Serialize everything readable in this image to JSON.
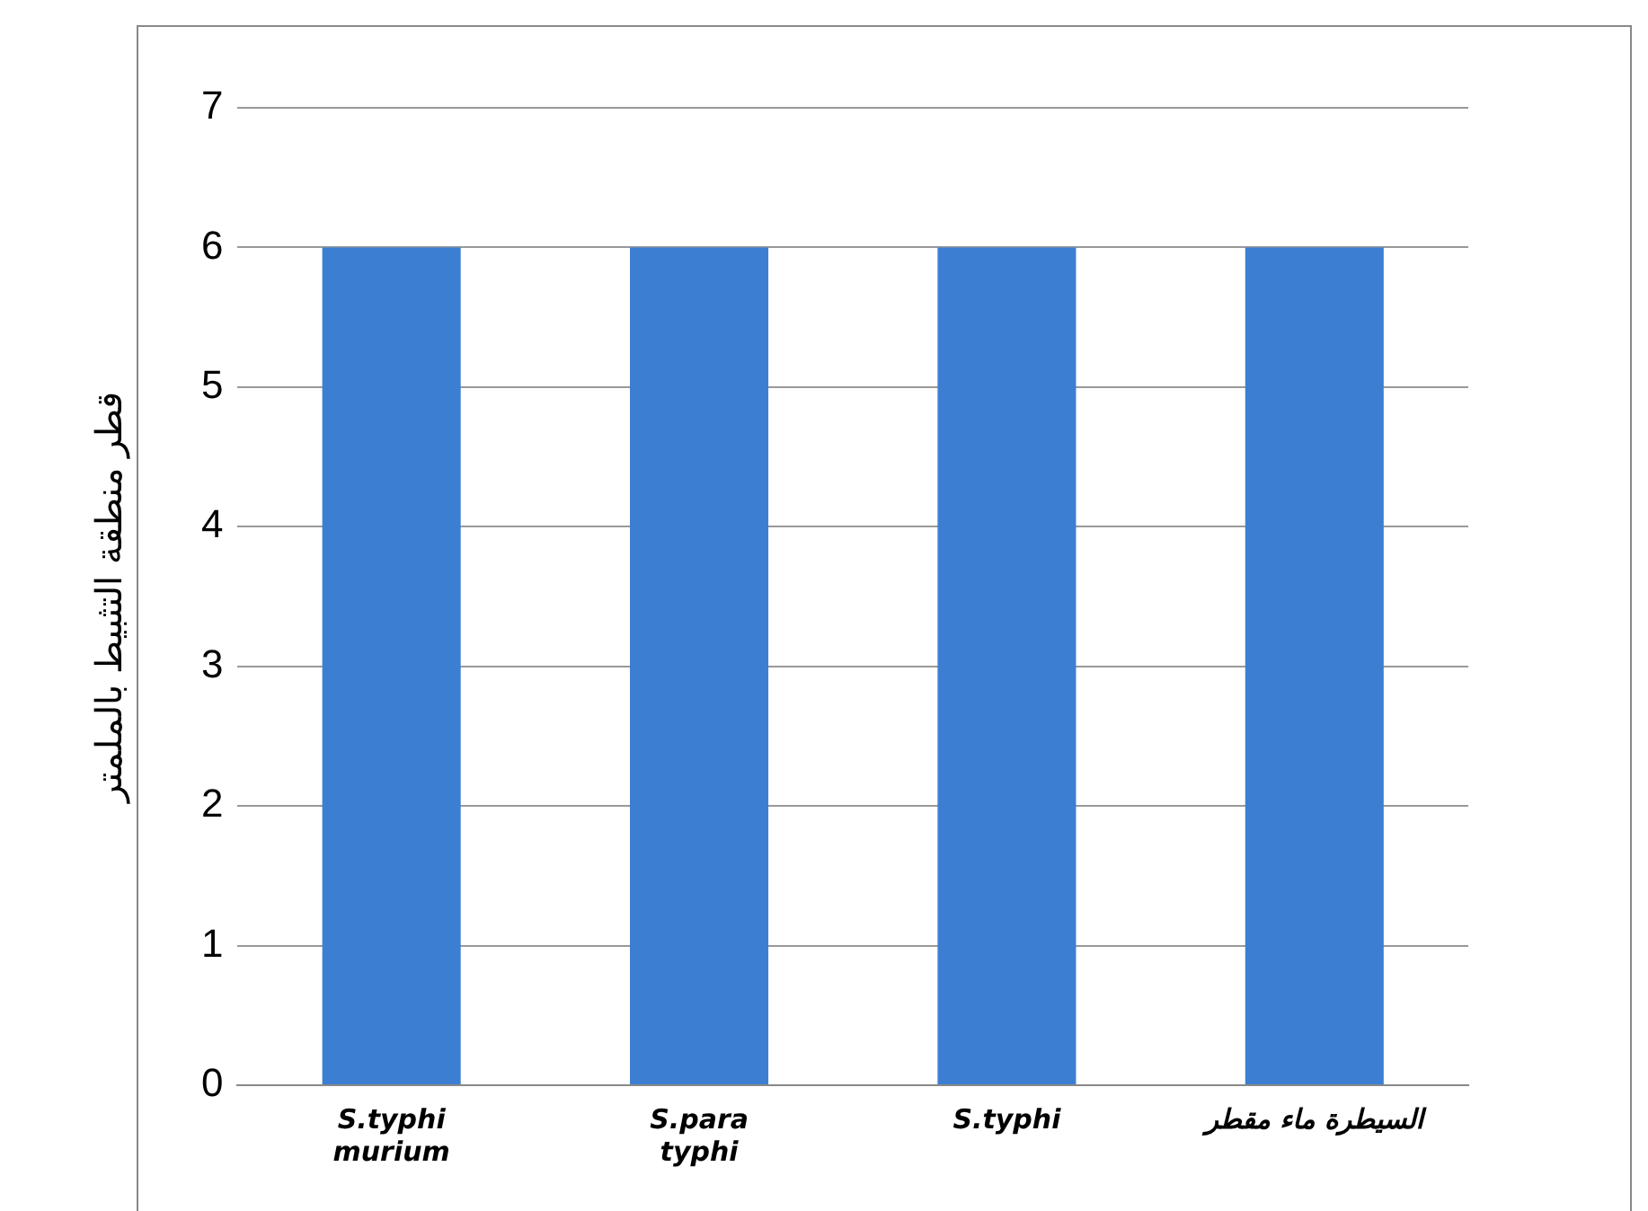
{
  "chart_data": {
    "type": "bar",
    "ylabel": "قطر منطقة التثبيط بالملمتر",
    "categories": [
      "S.typhi murium",
      "S.para typhi",
      "S.typhi",
      "السيطرة ماء مقطر"
    ],
    "values": [
      6,
      6,
      6,
      6
    ],
    "color": "#3c7fd2",
    "ylim": [
      0,
      7
    ],
    "yticks": [
      0,
      1,
      2,
      3,
      4,
      5,
      6,
      7
    ],
    "grid": "y",
    "legend": false
  }
}
